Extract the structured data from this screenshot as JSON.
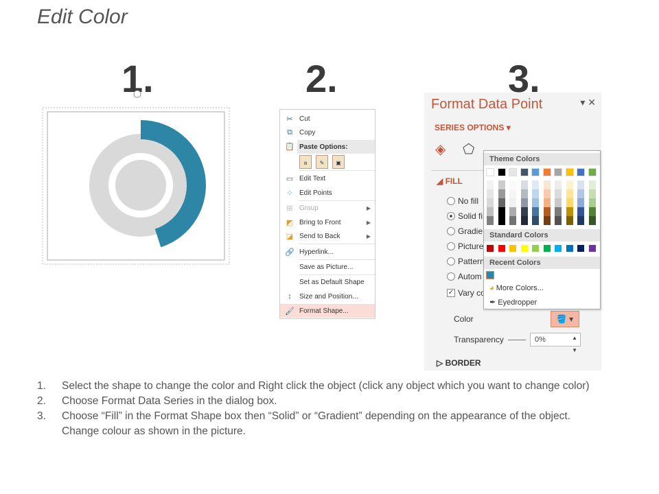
{
  "title": "Edit Color",
  "step_numbers": [
    "1.",
    "2.",
    "3."
  ],
  "donut": {
    "accent": "#2e86a6",
    "ring": "#d9d9d9",
    "highlight_fraction": 0.45
  },
  "context_menu": {
    "items": [
      {
        "label": "Cut",
        "icon": "scissors-icon"
      },
      {
        "label": "Copy",
        "icon": "copy-icon"
      },
      {
        "label": "Paste Options:",
        "icon": "paste-icon"
      },
      {
        "label": "Edit Text",
        "icon": "text-box-icon"
      },
      {
        "label": "Edit Points",
        "icon": "edit-points-icon"
      },
      {
        "label": "Group",
        "icon": "group-icon",
        "disabled": true
      },
      {
        "label": "Bring to Front",
        "icon": "bring-front-icon"
      },
      {
        "label": "Send to Back",
        "icon": "send-back-icon"
      },
      {
        "label": "Hyperlink...",
        "icon": "hyperlink-icon"
      },
      {
        "label": "Save as Picture..."
      },
      {
        "label": "Set as Default Shape"
      },
      {
        "label": "Size and Position...",
        "icon": "size-icon"
      },
      {
        "label": "Format Shape...",
        "icon": "format-shape-icon"
      }
    ]
  },
  "panel": {
    "title": "Format Data Point",
    "series_options": "SERIES OPTIONS",
    "fill": "FILL",
    "options": [
      "No fill",
      "Solid fi",
      "Gradie",
      "Picture",
      "Pattern",
      "Autom"
    ],
    "vary": "Vary co",
    "color_label": "Color",
    "transparency_label": "Transparency",
    "transparency_value": "0%",
    "border": "BORDER"
  },
  "popup": {
    "theme_colors": "Theme Colors",
    "standard_colors": "Standard Colors",
    "recent_colors": "Recent Colors",
    "more_colors": "More Colors...",
    "eyedropper": "Eyedropper",
    "theme": [
      "#ffffff",
      "#000000",
      "#e7e6e6",
      "#44546a",
      "#5b9bd5",
      "#ed7d31",
      "#a5a5a5",
      "#ffc000",
      "#4472c4",
      "#70ad47"
    ],
    "standard": [
      "#c00000",
      "#ff0000",
      "#ffc000",
      "#ffff00",
      "#92d050",
      "#00b050",
      "#00b0f0",
      "#0070c0",
      "#002060",
      "#7030a0"
    ],
    "recent": [
      "#2e86a6"
    ]
  },
  "steps": [
    "Select the shape to change the color and Right click the object (click any object which you want to change color)",
    "Choose Format Data Series in the dialog box.",
    "Choose “Fill” in the Format Shape box then “Solid” or “Gradient” depending on the appearance of the object. Change colour as shown in the picture."
  ]
}
